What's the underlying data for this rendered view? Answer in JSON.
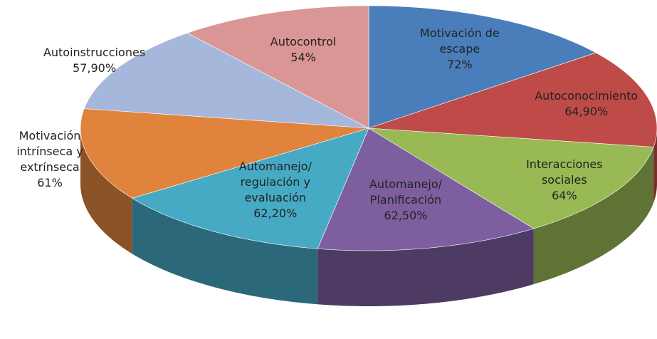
{
  "chart_data": {
    "type": "pie3d",
    "categories": [
      "Motivación de escape",
      "Autoconocimiento",
      "Interacciones sociales",
      "Automanejo/ Planificación",
      "Automanejo/ regulación y evaluación",
      "Motivación intrínseca y extrínseca",
      "Autoinstrucciones",
      "Autocontrol"
    ],
    "values": [
      72,
      64.9,
      64,
      62.5,
      62.2,
      61,
      57.9,
      54
    ],
    "value_labels": [
      "72%",
      "64,90%",
      "64%",
      "62,50%",
      "62,20%",
      "61%",
      "57,90%",
      "54%"
    ],
    "colors": [
      "#4a7ebb",
      "#be4b48",
      "#98b954",
      "#7d5fa0",
      "#46aac5",
      "#e0843d",
      "#a5b8dc",
      "#d99694"
    ]
  }
}
